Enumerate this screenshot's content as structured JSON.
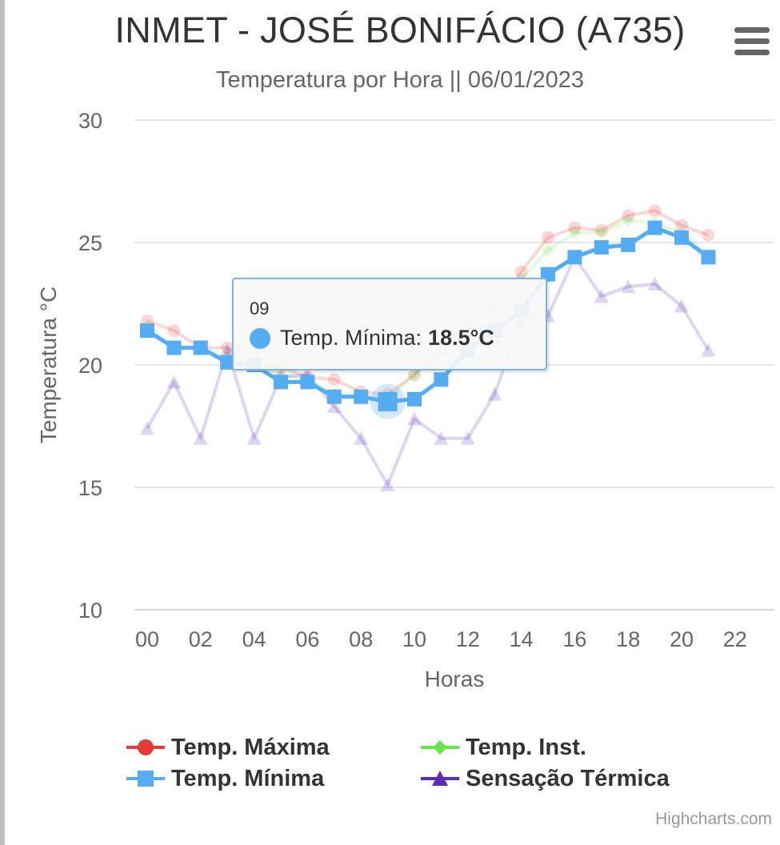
{
  "header": {
    "title": "INMET - JOSÉ BONIFÁCIO (A735)",
    "subtitle": "Temperatura por Hora || 06/01/2023",
    "menu_icon": "hamburger-menu-icon"
  },
  "tooltip": {
    "header": "09",
    "series_name": "Temp. Mínima:",
    "value": "18.5°C"
  },
  "credits": "Highcharts.com",
  "chart_data": {
    "type": "line",
    "title": "INMET - JOSÉ BONIFÁCIO (A735)",
    "subtitle": "Temperatura por Hora || 06/01/2023",
    "xlabel": "Horas",
    "ylabel": "Temperatura °C",
    "ylim": [
      10,
      30
    ],
    "yticks": [
      10,
      15,
      20,
      25,
      30
    ],
    "xlim": [
      0,
      23
    ],
    "xtick_positions": [
      0,
      2,
      4,
      6,
      8,
      10,
      12,
      14,
      16,
      18,
      20,
      22
    ],
    "xtick_labels": [
      "00",
      "02",
      "04",
      "06",
      "08",
      "10",
      "12",
      "14",
      "16",
      "18",
      "20",
      "22"
    ],
    "x": [
      0,
      1,
      2,
      3,
      4,
      5,
      6,
      7,
      8,
      9,
      10,
      11,
      12,
      13,
      14,
      15,
      16,
      17,
      18,
      19,
      20,
      21
    ],
    "grid": true,
    "legend_position": "bottom",
    "highlighted": {
      "series": "Temp. Mínima",
      "x": 9,
      "value": 18.5
    },
    "series": [
      {
        "name": "Temp. Máxima",
        "color": "#e53935",
        "marker": "circle",
        "dimmed": true,
        "values": [
          21.8,
          21.4,
          20.7,
          20.7,
          20.1,
          19.9,
          19.5,
          19.4,
          18.9,
          18.8,
          19.6,
          20.6,
          21.7,
          22.4,
          23.8,
          25.2,
          25.6,
          25.5,
          26.1,
          26.3,
          25.7,
          25.3
        ]
      },
      {
        "name": "Temp. Mínima",
        "color": "#54adf4",
        "marker": "square",
        "dimmed": false,
        "values": [
          21.4,
          20.7,
          20.7,
          20.1,
          20.0,
          19.3,
          19.3,
          18.7,
          18.7,
          18.5,
          18.6,
          19.4,
          20.6,
          21.4,
          22.2,
          23.7,
          24.4,
          24.8,
          24.9,
          25.6,
          25.2,
          24.4
        ]
      },
      {
        "name": "Temp. Inst.",
        "color": "#66e64d",
        "marker": "diamond",
        "dimmed": true,
        "values": [
          21.6,
          20.7,
          20.7,
          20.3,
          20.0,
          19.6,
          19.4,
          18.8,
          18.8,
          18.6,
          19.6,
          20.6,
          21.3,
          22.1,
          23.5,
          24.7,
          25.4,
          25.4,
          25.9,
          25.8,
          25.4,
          24.5
        ]
      },
      {
        "name": "Sensação Térmica",
        "color": "#5e2ab8",
        "marker": "triangle",
        "dimmed": true,
        "values": [
          17.4,
          19.3,
          17.0,
          20.6,
          17.0,
          19.5,
          19.6,
          18.3,
          17.0,
          15.1,
          17.8,
          17.0,
          17.0,
          18.8,
          21.8,
          22.0,
          24.4,
          22.8,
          23.2,
          23.3,
          22.4,
          20.6
        ]
      }
    ]
  }
}
